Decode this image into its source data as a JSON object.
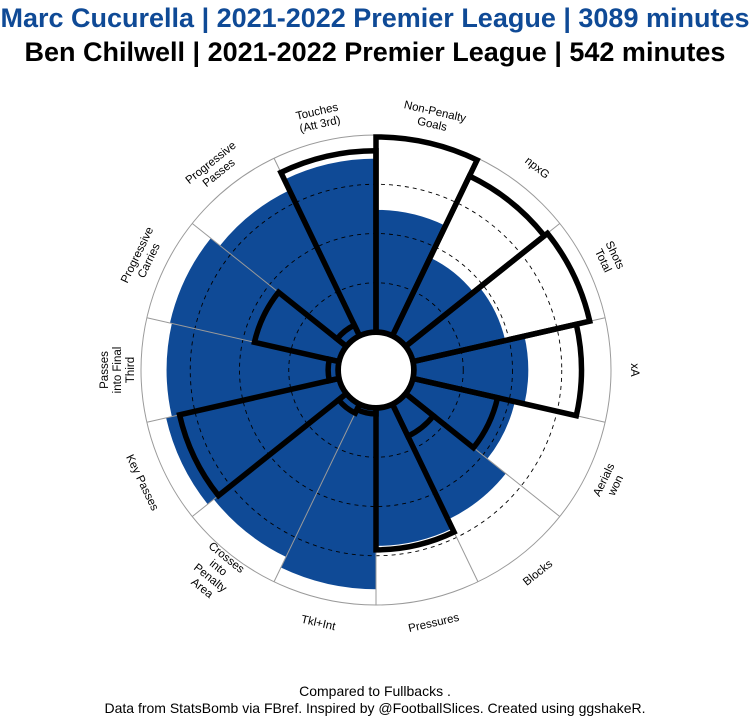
{
  "titles": {
    "player1": "Marc Cucurella | 2021-2022 Premier League | 3089 minutes",
    "player2": "Ben Chilwell  | 2021-2022 Premier League  | 542 minutes"
  },
  "captions": {
    "comparison": "Compared to Fullbacks .",
    "credit": "Data from StatsBomb via FBref. Inspired by @FootballSlices. Created using ggshakeR."
  },
  "colors": {
    "player1_fill": "#0f4a96",
    "player2_outline": "#000000",
    "grid": "#9a9a9a"
  },
  "chart_data": {
    "type": "polar-bar",
    "ylim": [
      0,
      100
    ],
    "categories": [
      "Non-Penalty Goals",
      "npxG",
      "Shots Total",
      "xA",
      "Aerials won",
      "Blocks",
      "Pressures",
      "Tkl+Int",
      "Crosses into Penalty Area",
      "Key Passes",
      "Passes into Final Third",
      "Progressive Carries",
      "Progressive Passes",
      "Touches (Att 3rd)"
    ],
    "series": [
      {
        "name": "Marc Cucurella",
        "style": "filled",
        "values": [
          62,
          44,
          48,
          58,
          53,
          65,
          70,
          92,
          86,
          90,
          87,
          88,
          82,
          88
        ]
      },
      {
        "name": "Ben Chilwell",
        "style": "outline",
        "values": [
          99,
          90,
          92,
          85,
          44,
          18,
          72,
          3,
          5,
          83,
          5,
          44,
          6,
          92
        ]
      }
    ]
  }
}
